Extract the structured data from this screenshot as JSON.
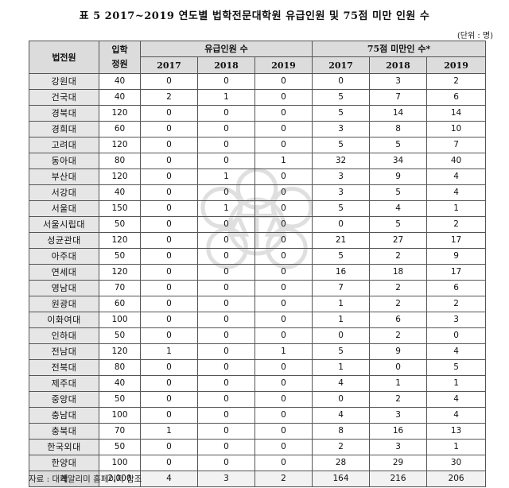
{
  "title": "표 5 2017~2019 연도별 법학전문대학원 유급인원 및 75점 미만 인원 수",
  "unit": "(단위 : 명)",
  "header": {
    "school": "법전원",
    "quota": "입학 정원",
    "repeat_group": "유급인원 수",
    "below75_group": "75점 미만인 수*",
    "years": [
      "2017",
      "2018",
      "2019"
    ]
  },
  "rows": [
    {
      "name": "강원대",
      "quota": "40",
      "r2017": "0",
      "r2018": "0",
      "r2019": "0",
      "b2017": "0",
      "b2018": "3",
      "b2019": "2"
    },
    {
      "name": "건국대",
      "quota": "40",
      "r2017": "2",
      "r2018": "1",
      "r2019": "0",
      "b2017": "5",
      "b2018": "7",
      "b2019": "6"
    },
    {
      "name": "경북대",
      "quota": "120",
      "r2017": "0",
      "r2018": "0",
      "r2019": "0",
      "b2017": "5",
      "b2018": "14",
      "b2019": "14"
    },
    {
      "name": "경희대",
      "quota": "60",
      "r2017": "0",
      "r2018": "0",
      "r2019": "0",
      "b2017": "3",
      "b2018": "8",
      "b2019": "10"
    },
    {
      "name": "고려대",
      "quota": "120",
      "r2017": "0",
      "r2018": "0",
      "r2019": "0",
      "b2017": "5",
      "b2018": "5",
      "b2019": "7"
    },
    {
      "name": "동아대",
      "quota": "80",
      "r2017": "0",
      "r2018": "0",
      "r2019": "1",
      "b2017": "32",
      "b2018": "34",
      "b2019": "40"
    },
    {
      "name": "부산대",
      "quota": "120",
      "r2017": "0",
      "r2018": "1",
      "r2019": "0",
      "b2017": "3",
      "b2018": "9",
      "b2019": "4"
    },
    {
      "name": "서강대",
      "quota": "40",
      "r2017": "0",
      "r2018": "0",
      "r2019": "0",
      "b2017": "3",
      "b2018": "5",
      "b2019": "4"
    },
    {
      "name": "서울대",
      "quota": "150",
      "r2017": "0",
      "r2018": "1",
      "r2019": "0",
      "b2017": "5",
      "b2018": "4",
      "b2019": "1"
    },
    {
      "name": "서울시립대",
      "quota": "50",
      "r2017": "0",
      "r2018": "0",
      "r2019": "0",
      "b2017": "0",
      "b2018": "5",
      "b2019": "2"
    },
    {
      "name": "성균관대",
      "quota": "120",
      "r2017": "0",
      "r2018": "0",
      "r2019": "0",
      "b2017": "21",
      "b2018": "27",
      "b2019": "17"
    },
    {
      "name": "아주대",
      "quota": "50",
      "r2017": "0",
      "r2018": "0",
      "r2019": "0",
      "b2017": "5",
      "b2018": "2",
      "b2019": "9"
    },
    {
      "name": "연세대",
      "quota": "120",
      "r2017": "0",
      "r2018": "0",
      "r2019": "0",
      "b2017": "16",
      "b2018": "18",
      "b2019": "17"
    },
    {
      "name": "영남대",
      "quota": "70",
      "r2017": "0",
      "r2018": "0",
      "r2019": "0",
      "b2017": "7",
      "b2018": "2",
      "b2019": "6"
    },
    {
      "name": "원광대",
      "quota": "60",
      "r2017": "0",
      "r2018": "0",
      "r2019": "0",
      "b2017": "1",
      "b2018": "2",
      "b2019": "2"
    },
    {
      "name": "이화여대",
      "quota": "100",
      "r2017": "0",
      "r2018": "0",
      "r2019": "0",
      "b2017": "1",
      "b2018": "6",
      "b2019": "3"
    },
    {
      "name": "인하대",
      "quota": "50",
      "r2017": "0",
      "r2018": "0",
      "r2019": "0",
      "b2017": "0",
      "b2018": "2",
      "b2019": "0"
    },
    {
      "name": "전남대",
      "quota": "120",
      "r2017": "1",
      "r2018": "0",
      "r2019": "1",
      "b2017": "5",
      "b2018": "9",
      "b2019": "4"
    },
    {
      "name": "전북대",
      "quota": "80",
      "r2017": "0",
      "r2018": "0",
      "r2019": "0",
      "b2017": "1",
      "b2018": "0",
      "b2019": "5"
    },
    {
      "name": "제주대",
      "quota": "40",
      "r2017": "0",
      "r2018": "0",
      "r2019": "0",
      "b2017": "4",
      "b2018": "1",
      "b2019": "1"
    },
    {
      "name": "중앙대",
      "quota": "50",
      "r2017": "0",
      "r2018": "0",
      "r2019": "0",
      "b2017": "0",
      "b2018": "2",
      "b2019": "4"
    },
    {
      "name": "충남대",
      "quota": "100",
      "r2017": "0",
      "r2018": "0",
      "r2019": "0",
      "b2017": "4",
      "b2018": "3",
      "b2019": "4"
    },
    {
      "name": "충북대",
      "quota": "70",
      "r2017": "1",
      "r2018": "0",
      "r2019": "0",
      "b2017": "8",
      "b2018": "16",
      "b2019": "13"
    },
    {
      "name": "한국외대",
      "quota": "50",
      "r2017": "0",
      "r2018": "0",
      "r2019": "0",
      "b2017": "2",
      "b2018": "3",
      "b2019": "1"
    },
    {
      "name": "한양대",
      "quota": "100",
      "r2017": "0",
      "r2018": "0",
      "r2019": "0",
      "b2017": "28",
      "b2018": "29",
      "b2019": "30"
    }
  ],
  "total": {
    "name": "계",
    "quota": "2,000",
    "r2017": "4",
    "r2018": "3",
    "r2019": "2",
    "b2017": "164",
    "b2018": "216",
    "b2019": "206"
  },
  "source": "자료 : 대학알리미 홈페이지 참조",
  "watermark_icon": "court-emblem-icon"
}
